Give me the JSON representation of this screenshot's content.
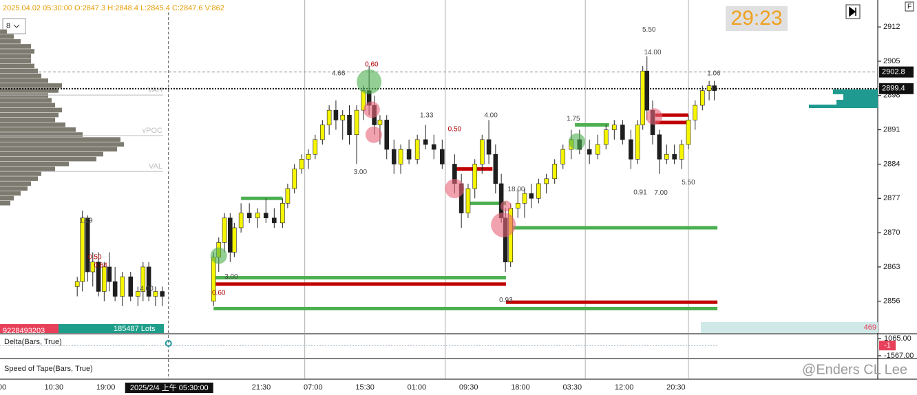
{
  "chart_data": {
    "type": "candlestick",
    "header": "2025.04.02 05:30:00 O:2847.3 H:2848.4 L:2845.4 C:2847.6 V:862",
    "timer": "29:23",
    "period": "8",
    "flag": "F",
    "categories": [
      "00",
      "10:30",
      "19:00",
      null,
      null,
      "21:30",
      "07:00",
      "15:30",
      "01:00",
      "09:30",
      "18:00",
      "03:30",
      "12:00",
      "20:30"
    ],
    "crosshair": {
      "x": 3.21,
      "label": "2025/2/4 上午 05:30:00"
    },
    "session_lines": [
      5.84,
      8.55,
      11.25,
      13.24
    ],
    "ylim": [
      2849.5,
      2917.5
    ],
    "yticks": [
      2912,
      2905,
      2898,
      2891,
      2884,
      2877,
      2870,
      2863,
      2856
    ],
    "up_color": "#f5f500",
    "down_color": "#1e1e1e",
    "x": [
      1.45,
      1.55,
      1.65,
      1.75,
      1.86,
      1.97,
      2.07,
      2.18,
      2.32,
      2.48,
      2.62,
      2.72,
      2.83,
      2.96,
      3.09,
      4.08,
      4.18,
      4.29,
      4.4,
      4.48,
      4.61,
      4.77,
      4.93,
      5.09,
      5.25,
      5.41,
      5.51,
      5.64,
      5.78,
      5.91,
      6.04,
      6.18,
      6.31,
      6.44,
      6.57,
      6.7,
      6.84,
      6.97,
      7.08,
      7.18,
      7.29,
      7.42,
      7.56,
      7.69,
      7.85,
      8.01,
      8.17,
      8.33,
      8.49,
      8.73,
      8.86,
      8.99,
      9.12,
      9.26,
      9.39,
      9.52,
      9.63,
      9.71,
      9.81,
      9.95,
      10.08,
      10.21,
      10.35,
      10.5,
      10.66,
      10.82,
      10.98,
      11.14,
      11.33,
      11.49,
      11.65,
      11.81,
      11.97,
      12.13,
      12.26,
      12.36,
      12.44,
      12.55,
      12.68,
      12.82,
      12.97,
      13.11,
      13.24,
      13.37,
      13.51,
      13.64,
      13.74
    ],
    "open": [
      2859,
      2860,
      2873,
      2862,
      2864,
      2858,
      2863,
      2860,
      2857,
      2861,
      2857,
      2858,
      2863,
      2857,
      2858,
      2856,
      2865,
      2868,
      2873,
      2866,
      2871,
      2874,
      2873,
      2874,
      2873,
      2872,
      2876,
      2879,
      2883,
      2885,
      2886,
      2889,
      2892,
      2895,
      2893,
      2894,
      2890,
      2895,
      2899,
      2896,
      2892,
      2893,
      2887,
      2884,
      2887,
      2885,
      2889,
      2888,
      2887,
      2884,
      2880,
      2874,
      2879,
      2884,
      2889,
      2886,
      2880,
      2873,
      2864,
      2875,
      2876,
      2878,
      2877,
      2880,
      2881,
      2884,
      2887,
      2889,
      2887,
      2886,
      2888,
      2891,
      2892,
      2889,
      2885,
      2892,
      2903,
      2895,
      2890,
      2885,
      2886,
      2885,
      2888,
      2893,
      2896,
      2899,
      2900
    ],
    "high": [
      2861,
      2874.5,
      2873.5,
      2866,
      2866,
      2864,
      2866,
      2863,
      2862,
      2862,
      2859,
      2864,
      2864,
      2859,
      2859,
      2866,
      2869,
      2874,
      2874,
      2872,
      2876,
      2876,
      2875,
      2877,
      2875,
      2877,
      2880,
      2884,
      2886,
      2887,
      2890,
      2893,
      2896,
      2897,
      2895,
      2896,
      2896,
      2900,
      2904,
      2898,
      2894,
      2894,
      2889,
      2888,
      2889,
      2890,
      2892,
      2890,
      2889,
      2886,
      2882,
      2880,
      2885,
      2890,
      2893,
      2888,
      2882,
      2875,
      2876,
      2879,
      2879,
      2880,
      2881,
      2882,
      2885,
      2888,
      2891,
      2891,
      2889,
      2890,
      2892,
      2893,
      2893,
      2891,
      2893,
      2904,
      2906,
      2897,
      2891,
      2888,
      2888,
      2889,
      2894,
      2897,
      2900,
      2901,
      2901
    ],
    "low": [
      2857,
      2858,
      2860,
      2859,
      2857,
      2856,
      2858,
      2856,
      2855,
      2856,
      2855,
      2856,
      2856,
      2855,
      2855,
      2855,
      2862,
      2866,
      2864,
      2865,
      2870,
      2872,
      2871,
      2872,
      2871,
      2871,
      2875,
      2878,
      2882,
      2883,
      2885,
      2888,
      2890,
      2891,
      2889,
      2888,
      2884,
      2893,
      2894,
      2890,
      2888,
      2885,
      2882,
      2882,
      2884,
      2884,
      2887,
      2885,
      2883,
      2878,
      2871,
      2873,
      2877,
      2882,
      2884,
      2878,
      2872,
      2862,
      2863,
      2873,
      2873,
      2875,
      2876,
      2878,
      2880,
      2883,
      2885,
      2886,
      2884,
      2885,
      2887,
      2889,
      2888,
      2883,
      2884,
      2891,
      2893,
      2888,
      2882,
      2884,
      2884,
      2883,
      2887,
      2891,
      2895,
      2897,
      2897
    ],
    "close": [
      2860,
      2873,
      2862,
      2864,
      2858,
      2863,
      2860,
      2857,
      2861,
      2857,
      2858,
      2863,
      2857,
      2858,
      2857,
      2865,
      2868,
      2873,
      2866,
      2871,
      2874,
      2873,
      2874,
      2873,
      2872,
      2876,
      2879,
      2883,
      2885,
      2886,
      2889,
      2892,
      2895,
      2893,
      2894,
      2890,
      2895,
      2899,
      2896,
      2892,
      2893,
      2887,
      2884,
      2887,
      2885,
      2889,
      2888,
      2887,
      2884,
      2880,
      2874,
      2879,
      2884,
      2889,
      2886,
      2880,
      2873,
      2864,
      2875,
      2876,
      2878,
      2877,
      2880,
      2881,
      2884,
      2887,
      2889,
      2887,
      2886,
      2888,
      2891,
      2892,
      2889,
      2885,
      2892,
      2903,
      2895,
      2890,
      2885,
      2886,
      2885,
      2888,
      2893,
      2896,
      2899,
      2900,
      2899
    ],
    "price_lines": [
      {
        "value": 2902.8,
        "style": "dashed"
      },
      {
        "value": 2899.4,
        "style": "dotted"
      }
    ],
    "levels": [
      {
        "price": 2860.8,
        "from": 4.08,
        "to": 9.72,
        "color": "#4caf50"
      },
      {
        "price": 2859.5,
        "from": 4.08,
        "to": 9.72,
        "color": "#c00000"
      },
      {
        "price": 2855.8,
        "from": 9.72,
        "to": 13.8,
        "color": "#c00000"
      },
      {
        "price": 2854.5,
        "from": 4.08,
        "to": 13.8,
        "color": "#4caf50"
      },
      {
        "price": 2871,
        "from": 9.8,
        "to": 13.8,
        "color": "#4caf50"
      },
      {
        "price": 2877,
        "from": 4.61,
        "to": 5.41,
        "color": "#4caf50"
      },
      {
        "price": 2876,
        "from": 8.99,
        "to": 9.72,
        "color": "#4caf50"
      },
      {
        "price": 2883,
        "from": 8.73,
        "to": 9.46,
        "color": "#c00000"
      },
      {
        "price": 2892,
        "from": 11.05,
        "to": 11.71,
        "color": "#4caf50"
      },
      {
        "price": 2894,
        "from": 12.6,
        "to": 13.24,
        "color": "#c00000"
      },
      {
        "price": 2892.5,
        "from": 12.6,
        "to": 13.24,
        "color": "#c00000"
      }
    ],
    "bubbles": [
      {
        "x": 7.08,
        "price": 2900.8,
        "size": 18,
        "color": "#4caf50"
      },
      {
        "x": 4.18,
        "price": 2865.3,
        "size": 12,
        "color": "#4caf50"
      },
      {
        "x": 7.13,
        "price": 2895.1,
        "size": 12,
        "color": "#e8647a"
      },
      {
        "x": 7.17,
        "price": 2890,
        "size": 12,
        "color": "#e8647a"
      },
      {
        "x": 8.73,
        "price": 2879,
        "size": 14,
        "color": "#e8647a"
      },
      {
        "x": 9.67,
        "price": 2871.6,
        "size": 18,
        "color": "#e8647a"
      },
      {
        "x": 9.72,
        "price": 2875.4,
        "size": 8,
        "color": "#e8647a"
      },
      {
        "x": 11.09,
        "price": 2888.6,
        "size": 12,
        "color": "#4caf50"
      },
      {
        "x": 12.58,
        "price": 2893.7,
        "size": 12,
        "color": "#e8647a"
      }
    ],
    "annotations": [
      {
        "text": "1.29",
        "x": 1.62,
        "price": 2872.4,
        "color": "#444"
      },
      {
        "text": "0.50",
        "x": 1.79,
        "price": 2865,
        "color": "#b00000"
      },
      {
        "text": "0.64",
        "x": 1.9,
        "price": 2863.3,
        "color": "#b00000"
      },
      {
        "text": "4.00",
        "x": 2.79,
        "price": 2858.5,
        "color": "#444"
      },
      {
        "text": "3.00",
        "x": 4.42,
        "price": 2861,
        "color": "#444"
      },
      {
        "text": "0.60",
        "x": 4.18,
        "price": 2857.7,
        "color": "#b00000"
      },
      {
        "text": "4.66",
        "x": 6.49,
        "price": 2902.5,
        "color": "#444"
      },
      {
        "text": "0.60",
        "x": 7.13,
        "price": 2904.3,
        "color": "#b00000"
      },
      {
        "text": "3.00",
        "x": 6.91,
        "price": 2882.3,
        "color": "#444"
      },
      {
        "text": "1.33",
        "x": 8.19,
        "price": 2893.9,
        "color": "#444"
      },
      {
        "text": "0.50",
        "x": 8.73,
        "price": 2891.1,
        "color": "#b00000"
      },
      {
        "text": "4.00",
        "x": 9.43,
        "price": 2893.9,
        "color": "#444"
      },
      {
        "text": "18.00",
        "x": 9.92,
        "price": 2878.8,
        "color": "#444"
      },
      {
        "text": "0.93",
        "x": 9.72,
        "price": 2856.2,
        "color": "#444"
      },
      {
        "text": "1.75",
        "x": 11.02,
        "price": 2893.2,
        "color": "#444"
      },
      {
        "text": "5.50",
        "x": 12.48,
        "price": 2911.4,
        "color": "#444"
      },
      {
        "text": "14.00",
        "x": 12.55,
        "price": 2906.8,
        "color": "#444"
      },
      {
        "text": "0.91",
        "x": 12.31,
        "price": 2878.2,
        "color": "#444"
      },
      {
        "text": "7.00",
        "x": 12.71,
        "price": 2878.1,
        "color": "#444"
      },
      {
        "text": "5.50",
        "x": 13.24,
        "price": 2880.2,
        "color": "#444"
      },
      {
        "text": "1.06",
        "x": 13.73,
        "price": 2902.5,
        "color": "#444"
      }
    ],
    "volume_profile": {
      "color": "#7d7a70",
      "prices": [
        2876,
        2877,
        2878,
        2879,
        2880,
        2881,
        2882,
        2883,
        2884,
        2885,
        2886,
        2887,
        2888,
        2889,
        2890,
        2891,
        2892,
        2893,
        2894,
        2895,
        2896,
        2897,
        2898,
        2899,
        2900,
        2901,
        2902,
        2903,
        2904,
        2905,
        2906,
        2907,
        2908,
        2909,
        2910,
        2911
      ],
      "values": [
        15,
        20,
        30,
        40,
        45,
        55,
        60,
        80,
        100,
        140,
        150,
        170,
        180,
        175,
        120,
        110,
        95,
        80,
        85,
        90,
        80,
        75,
        70,
        85,
        90,
        70,
        60,
        55,
        50,
        45,
        45,
        50,
        45,
        30,
        20,
        10
      ],
      "levels": [
        {
          "label": "VAH",
          "price": 2898.1
        },
        {
          "label": "vPOC",
          "price": 2889.8
        },
        {
          "label": "VAL",
          "price": 2882.5
        }
      ]
    },
    "stats": {
      "left": "9228493203",
      "middle": "185487 Lots",
      "right": "469"
    },
    "delta": {
      "label": "Delta(Bars, True)",
      "ylim": [
        -1883,
        1697
      ],
      "yticks": [
        {
          "value": 1065,
          "label": "1065.00"
        },
        {
          "value": -1567,
          "label": "-1567.00"
        }
      ],
      "last": -1
    },
    "speed": {
      "label": "Speed of Tape(Bars, True)"
    },
    "watermark": "@Enders CL Lee"
  }
}
